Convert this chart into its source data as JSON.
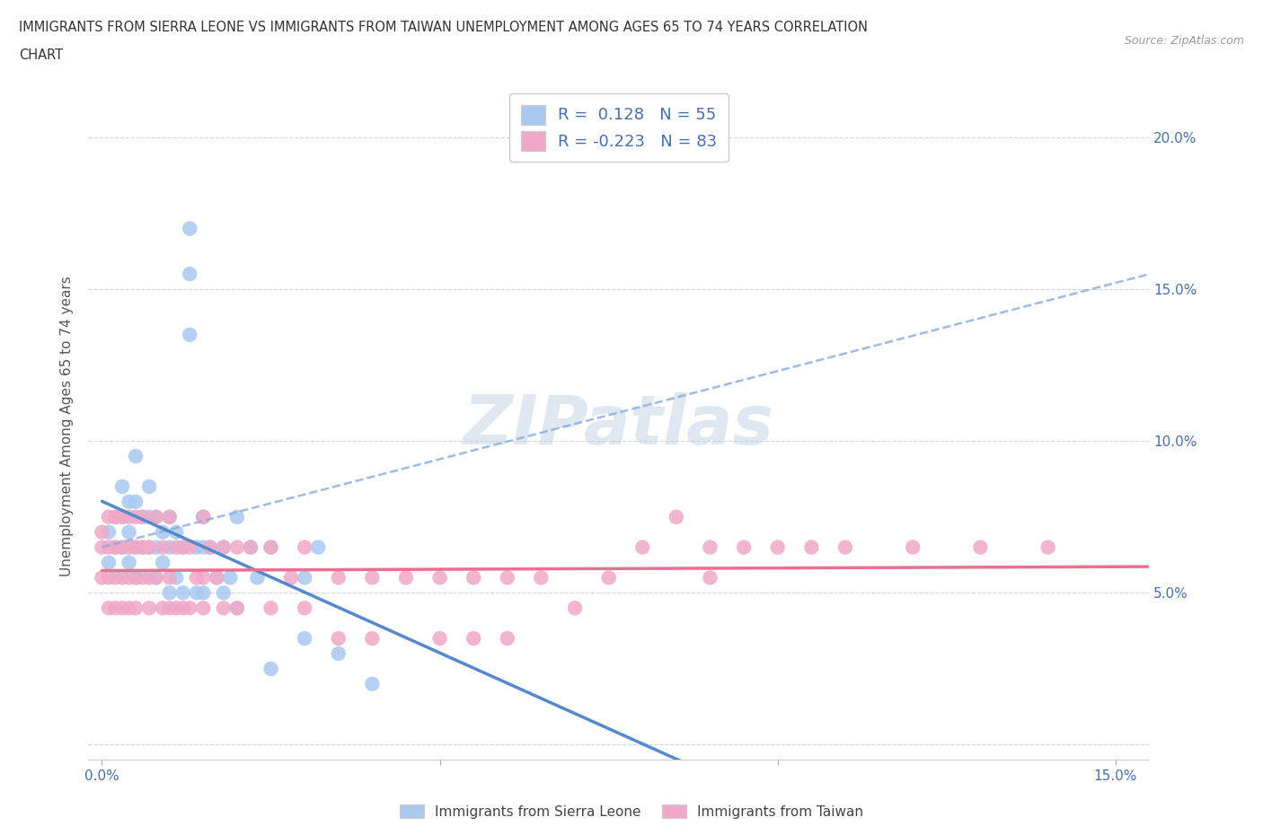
{
  "title_line1": "IMMIGRANTS FROM SIERRA LEONE VS IMMIGRANTS FROM TAIWAN UNEMPLOYMENT AMONG AGES 65 TO 74 YEARS CORRELATION",
  "title_line2": "CHART",
  "source_text": "Source: ZipAtlas.com",
  "ylabel": "Unemployment Among Ages 65 to 74 years",
  "xlim": [
    -0.002,
    0.155
  ],
  "ylim": [
    -0.005,
    0.215
  ],
  "xticks": [
    0.0,
    0.05,
    0.1,
    0.15
  ],
  "yticks": [
    0.0,
    0.05,
    0.1,
    0.15,
    0.2
  ],
  "xticklabels": [
    "0.0%",
    "",
    "",
    "15.0%"
  ],
  "yticklabels_right": [
    "",
    "5.0%",
    "10.0%",
    "15.0%",
    "20.0%"
  ],
  "sierra_leone_R": 0.128,
  "sierra_leone_N": 55,
  "taiwan_R": -0.223,
  "taiwan_N": 83,
  "sierra_leone_color": "#a8c8f0",
  "taiwan_color": "#f0a8c8",
  "sierra_leone_line_color": "#5588cc",
  "taiwan_line_color": "#e87090",
  "dashed_line_color": "#88aad8",
  "watermark_color": "#c8d8e8",
  "legend_label_sl": "Immigrants from Sierra Leone",
  "legend_label_tw": "Immigrants from Taiwan",
  "text_color_blue": "#4a6fa5",
  "sierra_leone_x": [
    0.001,
    0.001,
    0.002,
    0.002,
    0.003,
    0.003,
    0.003,
    0.004,
    0.004,
    0.004,
    0.005,
    0.005,
    0.005,
    0.005,
    0.006,
    0.006,
    0.007,
    0.007,
    0.007,
    0.008,
    0.008,
    0.008,
    0.009,
    0.009,
    0.01,
    0.01,
    0.01,
    0.011,
    0.011,
    0.012,
    0.012,
    0.013,
    0.013,
    0.013,
    0.014,
    0.014,
    0.015,
    0.015,
    0.015,
    0.016,
    0.017,
    0.018,
    0.018,
    0.019,
    0.02,
    0.02,
    0.022,
    0.023,
    0.025,
    0.025,
    0.03,
    0.03,
    0.032,
    0.035,
    0.04
  ],
  "sierra_leone_y": [
    0.07,
    0.06,
    0.075,
    0.065,
    0.085,
    0.075,
    0.065,
    0.08,
    0.07,
    0.06,
    0.095,
    0.08,
    0.065,
    0.055,
    0.075,
    0.065,
    0.085,
    0.075,
    0.065,
    0.075,
    0.065,
    0.055,
    0.07,
    0.06,
    0.075,
    0.065,
    0.05,
    0.07,
    0.055,
    0.065,
    0.05,
    0.17,
    0.155,
    0.135,
    0.065,
    0.05,
    0.075,
    0.065,
    0.05,
    0.065,
    0.055,
    0.065,
    0.05,
    0.055,
    0.075,
    0.045,
    0.065,
    0.055,
    0.065,
    0.025,
    0.055,
    0.035,
    0.065,
    0.03,
    0.02
  ],
  "taiwan_x": [
    0.0,
    0.0,
    0.0,
    0.001,
    0.001,
    0.001,
    0.001,
    0.002,
    0.002,
    0.002,
    0.002,
    0.003,
    0.003,
    0.003,
    0.003,
    0.004,
    0.004,
    0.004,
    0.004,
    0.005,
    0.005,
    0.005,
    0.005,
    0.006,
    0.006,
    0.006,
    0.007,
    0.007,
    0.007,
    0.008,
    0.008,
    0.009,
    0.009,
    0.01,
    0.01,
    0.01,
    0.011,
    0.011,
    0.012,
    0.012,
    0.013,
    0.013,
    0.014,
    0.015,
    0.015,
    0.015,
    0.016,
    0.017,
    0.018,
    0.018,
    0.02,
    0.02,
    0.022,
    0.025,
    0.025,
    0.028,
    0.03,
    0.03,
    0.035,
    0.035,
    0.04,
    0.04,
    0.045,
    0.05,
    0.05,
    0.055,
    0.055,
    0.06,
    0.06,
    0.065,
    0.07,
    0.075,
    0.08,
    0.085,
    0.09,
    0.09,
    0.095,
    0.1,
    0.105,
    0.11,
    0.12,
    0.13,
    0.14
  ],
  "taiwan_y": [
    0.07,
    0.065,
    0.055,
    0.075,
    0.065,
    0.055,
    0.045,
    0.075,
    0.065,
    0.055,
    0.045,
    0.075,
    0.065,
    0.055,
    0.045,
    0.075,
    0.065,
    0.055,
    0.045,
    0.075,
    0.065,
    0.055,
    0.045,
    0.075,
    0.065,
    0.055,
    0.065,
    0.055,
    0.045,
    0.075,
    0.055,
    0.065,
    0.045,
    0.075,
    0.055,
    0.045,
    0.065,
    0.045,
    0.065,
    0.045,
    0.065,
    0.045,
    0.055,
    0.075,
    0.055,
    0.045,
    0.065,
    0.055,
    0.065,
    0.045,
    0.065,
    0.045,
    0.065,
    0.065,
    0.045,
    0.055,
    0.065,
    0.045,
    0.055,
    0.035,
    0.055,
    0.035,
    0.055,
    0.055,
    0.035,
    0.055,
    0.035,
    0.055,
    0.035,
    0.055,
    0.045,
    0.055,
    0.065,
    0.075,
    0.065,
    0.055,
    0.065,
    0.065,
    0.065,
    0.065,
    0.065,
    0.065,
    0.065
  ],
  "dashed_line_x": [
    0.0,
    0.155
  ],
  "dashed_line_y_start": 0.065,
  "dashed_line_slope": 0.9
}
